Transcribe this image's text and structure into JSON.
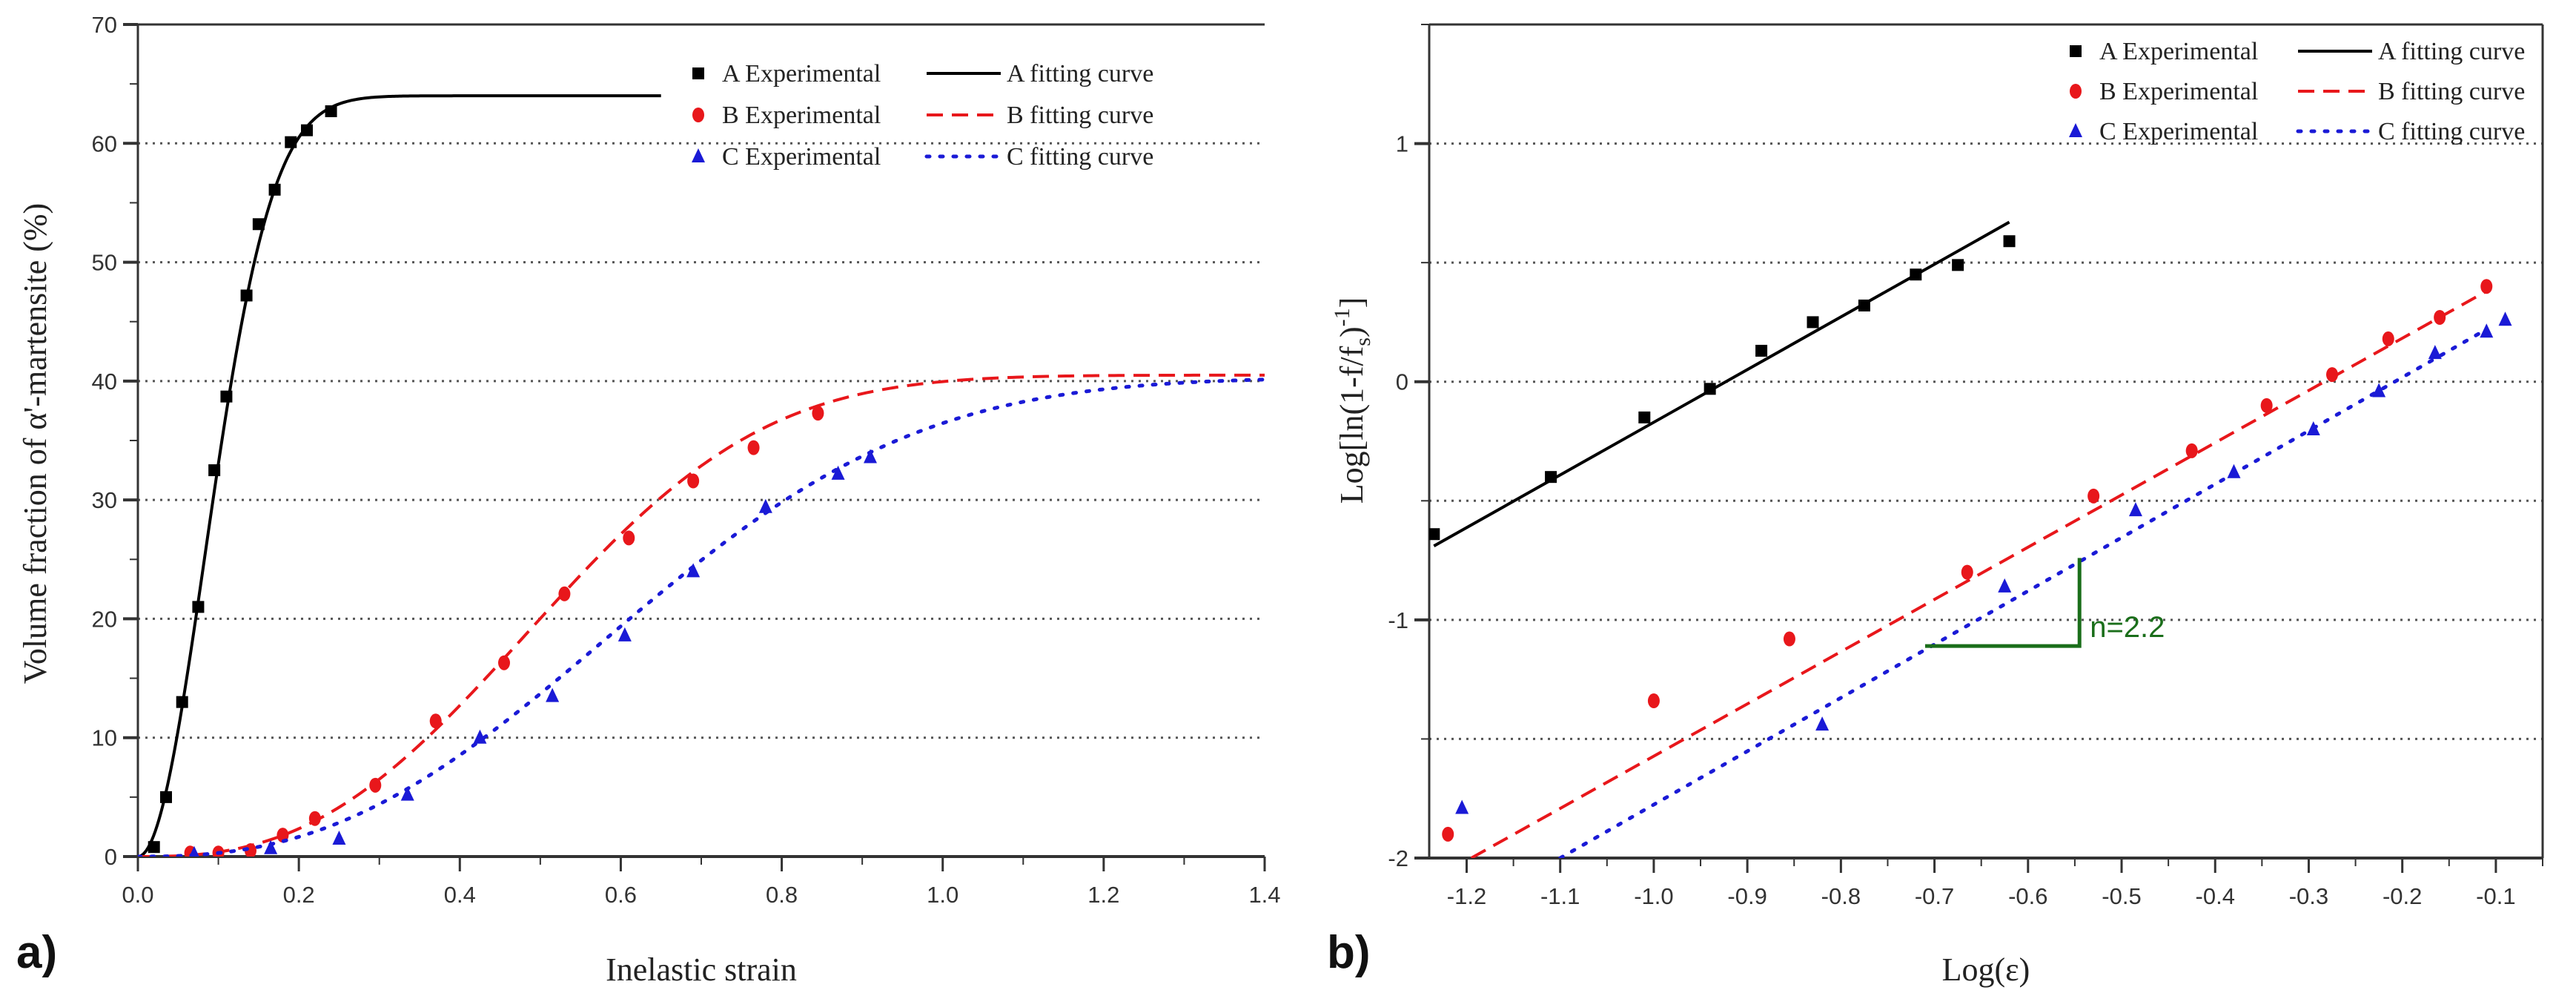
{
  "chart_data": [
    {
      "id": "a",
      "type": "scatter+line",
      "panel_label": "a)",
      "xlabel": "Inelastic strain",
      "ylabel": "Volume fraction of α'-martensite (%)",
      "xlim": [
        0,
        1.4
      ],
      "ylim": [
        0,
        70
      ],
      "xticks": [
        "0.0",
        "0.2",
        "0.4",
        "0.6",
        "0.8",
        "1.0",
        "1.2",
        "1.4"
      ],
      "yticks": [
        "0",
        "10",
        "20",
        "30",
        "40",
        "50",
        "60",
        "70"
      ],
      "grid": "horizontal dotted",
      "legend": "top-right",
      "series": [
        {
          "name": "A Experimental",
          "fit_name": "A  fitting curve",
          "color": "#000000",
          "marker": "square",
          "dash": "solid",
          "x": [
            0.02,
            0.035,
            0.055,
            0.075,
            0.095,
            0.11,
            0.135,
            0.15,
            0.17,
            0.19,
            0.21,
            0.24
          ],
          "y": [
            0.8,
            5,
            13,
            21,
            32.5,
            38.7,
            47.2,
            53.2,
            56.1,
            60.1,
            61.1,
            62.7
          ],
          "fit": {
            "fs": 64,
            "k": 72.6,
            "n": 2,
            "xmax": 0.65
          }
        },
        {
          "name": "B Experimental",
          "fit_name": "B  fitting curve",
          "color": "#e8171b",
          "marker": "circle",
          "dash": "dashed",
          "x": [
            0.065,
            0.1,
            0.14,
            0.18,
            0.22,
            0.295,
            0.37,
            0.455,
            0.53,
            0.61,
            0.69,
            0.765,
            0.845
          ],
          "y": [
            0.3,
            0.3,
            0.5,
            1.8,
            3.2,
            6,
            11.4,
            16.3,
            22.1,
            26.8,
            31.6,
            34.4,
            37.3
          ],
          "fit": {
            "fs": 40.5,
            "k": 4.31,
            "n": 2.66,
            "xmax": 1.4
          }
        },
        {
          "name": "C Experimental",
          "fit_name": "C  fitting curve",
          "color": "#1a1ad6",
          "marker": "triangle",
          "dash": "dotted",
          "x": [
            0.07,
            0.165,
            0.25,
            0.335,
            0.425,
            0.515,
            0.605,
            0.69,
            0.78,
            0.87,
            0.91
          ],
          "y": [
            0.2,
            0.7,
            1.5,
            5.2,
            10,
            13.5,
            18.6,
            24,
            29.4,
            32.2,
            33.6
          ],
          "fit": {
            "fs": 40.3,
            "k": 2.35,
            "n": 2.5,
            "xmax": 1.4
          }
        }
      ]
    },
    {
      "id": "b",
      "type": "scatter+line",
      "panel_label": "b)",
      "xlabel": "Log(ε)",
      "ylabel_parts": [
        "Log[ln(1-f/f",
        "s",
        ")",
        "-1",
        "]"
      ],
      "xlim": [
        -1.24,
        -0.05
      ],
      "ylim": [
        -2,
        1.5
      ],
      "xticks": [
        "-1.2",
        "-1.1",
        "-1.0",
        "-0.9",
        "-0.8",
        "-0.7",
        "-0.6",
        "-0.5",
        "-0.4",
        "-0.3",
        "-0.2",
        "-0.1"
      ],
      "yticks": [
        "-2",
        "-1",
        "0",
        "1"
      ],
      "grid": "horizontal dotted",
      "legend": "top-right",
      "annotation": {
        "text": "n=2.2",
        "x_start": -0.71,
        "x_end": -0.545,
        "y_low": -1.11,
        "y_high": -0.74,
        "color": "#1a6e1a"
      },
      "series": [
        {
          "name": "A Experimental",
          "fit_name": "A  fitting curve",
          "color": "#000000",
          "marker": "square",
          "dash": "solid",
          "x": [
            -1.235,
            -1.11,
            -1.01,
            -0.94,
            -0.885,
            -0.83,
            -0.775,
            -0.72,
            -0.675,
            -0.62
          ],
          "y": [
            -0.64,
            -0.4,
            -0.15,
            -0.03,
            0.13,
            0.25,
            0.32,
            0.45,
            0.49,
            0.59
          ],
          "fit_line": [
            [
              -1.235,
              -0.69
            ],
            [
              -0.62,
              0.67
            ]
          ]
        },
        {
          "name": "B Experimental",
          "fit_name": "B  fitting curve",
          "color": "#e8171b",
          "marker": "circle",
          "dash": "dashed",
          "x": [
            -1.22,
            -1.0,
            -0.855,
            -0.665,
            -0.53,
            -0.425,
            -0.345,
            -0.275,
            -0.215,
            -0.16,
            -0.11
          ],
          "y": [
            -1.9,
            -1.34,
            -1.08,
            -0.8,
            -0.48,
            -0.29,
            -0.1,
            0.03,
            0.18,
            0.27,
            0.4
          ],
          "fit_line": [
            [
              -1.195,
              -2.0
            ],
            [
              -0.11,
              0.38
            ]
          ]
        },
        {
          "name": "C Experimental",
          "fit_name": "C  fitting curve",
          "color": "#1a1ad6",
          "marker": "triangle",
          "dash": "dotted",
          "x": [
            -1.205,
            -0.82,
            -0.625,
            -0.485,
            -0.38,
            -0.295,
            -0.225,
            -0.165,
            -0.11,
            -0.09
          ],
          "y": [
            -1.79,
            -1.44,
            -0.86,
            -0.54,
            -0.38,
            -0.2,
            -0.04,
            0.12,
            0.21,
            0.26
          ],
          "fit_line": [
            [
              -1.1,
              -2.0
            ],
            [
              -0.11,
              0.22
            ]
          ]
        }
      ]
    }
  ]
}
